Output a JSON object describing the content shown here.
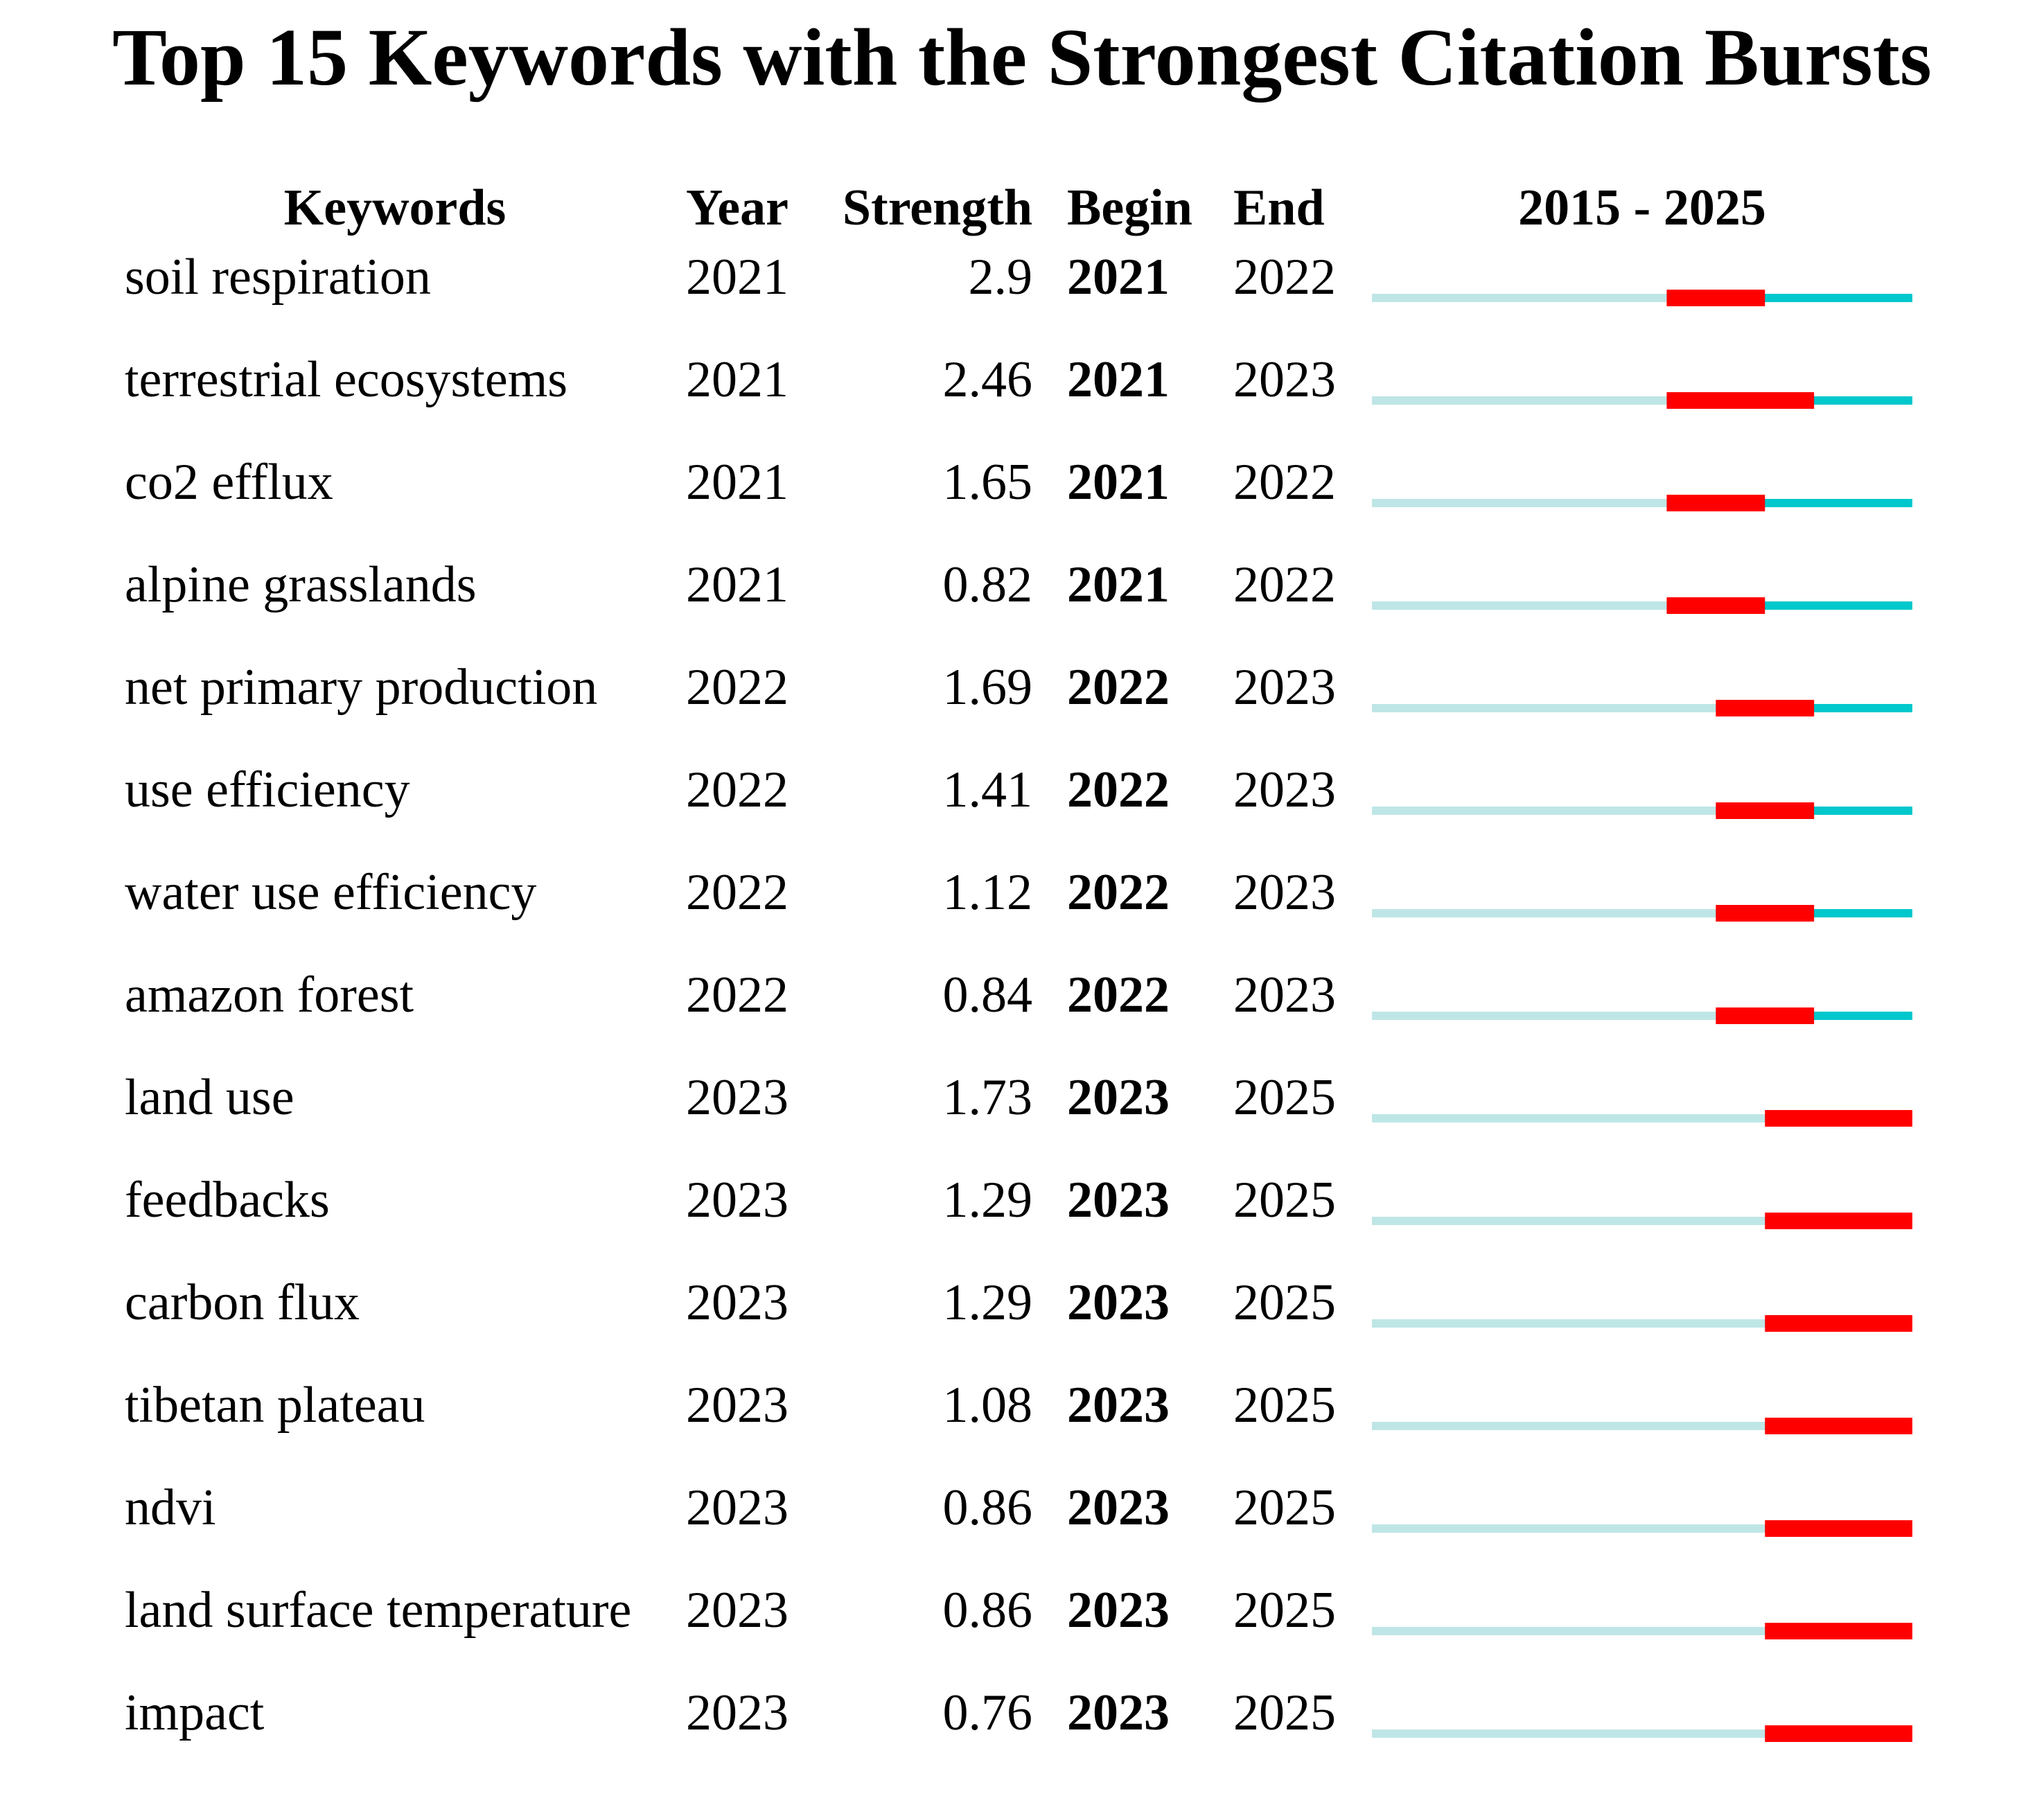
{
  "chart_data": {
    "type": "table",
    "title": "Top 15 Keywords with the Strongest Citation Bursts",
    "columns": [
      "Keywords",
      "Year",
      "Strength",
      "Begin",
      "End",
      "2015 - 2025"
    ],
    "range": [
      2015,
      2025
    ],
    "rows": [
      {
        "keyword": "soil respiration",
        "year": "2021",
        "strength": "2.9",
        "begin": "2021",
        "end": "2022"
      },
      {
        "keyword": "terrestrial ecosystems",
        "year": "2021",
        "strength": "2.46",
        "begin": "2021",
        "end": "2023"
      },
      {
        "keyword": "co2 efflux",
        "year": "2021",
        "strength": "1.65",
        "begin": "2021",
        "end": "2022"
      },
      {
        "keyword": "alpine grasslands",
        "year": "2021",
        "strength": "0.82",
        "begin": "2021",
        "end": "2022"
      },
      {
        "keyword": "net primary production",
        "year": "2022",
        "strength": "1.69",
        "begin": "2022",
        "end": "2023"
      },
      {
        "keyword": "use efficiency",
        "year": "2022",
        "strength": "1.41",
        "begin": "2022",
        "end": "2023"
      },
      {
        "keyword": "water use efficiency",
        "year": "2022",
        "strength": "1.12",
        "begin": "2022",
        "end": "2023"
      },
      {
        "keyword": "amazon forest",
        "year": "2022",
        "strength": "0.84",
        "begin": "2022",
        "end": "2023"
      },
      {
        "keyword": "land use",
        "year": "2023",
        "strength": "1.73",
        "begin": "2023",
        "end": "2025"
      },
      {
        "keyword": "feedbacks",
        "year": "2023",
        "strength": "1.29",
        "begin": "2023",
        "end": "2025"
      },
      {
        "keyword": "carbon flux",
        "year": "2023",
        "strength": "1.29",
        "begin": "2023",
        "end": "2025"
      },
      {
        "keyword": "tibetan plateau",
        "year": "2023",
        "strength": "1.08",
        "begin": "2023",
        "end": "2025"
      },
      {
        "keyword": "ndvi",
        "year": "2023",
        "strength": "0.86",
        "begin": "2023",
        "end": "2025"
      },
      {
        "keyword": "land surface temperature",
        "year": "2023",
        "strength": "0.86",
        "begin": "2023",
        "end": "2025"
      },
      {
        "keyword": "impact",
        "year": "2023",
        "strength": "0.76",
        "begin": "2023",
        "end": "2025"
      }
    ],
    "colors": {
      "pre_appearance": "#bfe6e6",
      "active": "#00c8cc",
      "burst": "#ff0000"
    }
  }
}
